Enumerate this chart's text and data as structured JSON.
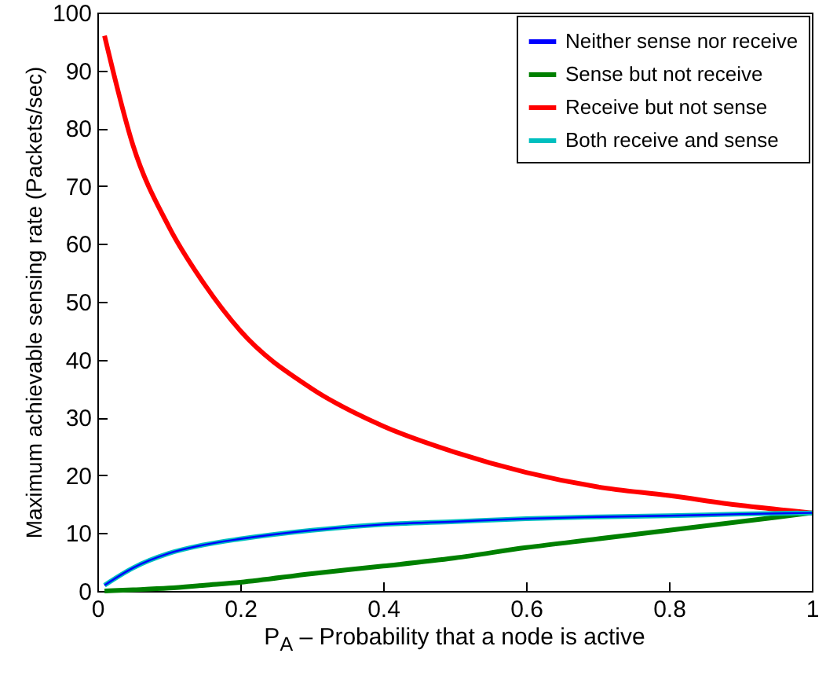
{
  "chart_data": {
    "type": "line",
    "xlabel": "P$_{A}$ – Probability that a node is active",
    "ylabel": "Maximum achievable sensing rate (Packets/sec)",
    "x": [
      0.01,
      0.05,
      0.1,
      0.15,
      0.2,
      0.3,
      0.4,
      0.5,
      0.6,
      0.7,
      0.8,
      0.9,
      1
    ],
    "series": [
      {
        "name": "Neither sense nor receive",
        "color": "#0000ff",
        "values": [
          1,
          4,
          6.5,
          8,
          9,
          10.5,
          11.5,
          12,
          12.5,
          12.8,
          13,
          13.3,
          13.5
        ]
      },
      {
        "name": "Sense but not receive",
        "color": "#008000",
        "values": [
          0,
          0.2,
          0.5,
          1,
          1.5,
          3,
          4.3,
          5.7,
          7.5,
          9,
          10.5,
          12,
          13.5
        ]
      },
      {
        "name": "Receive but not sense",
        "color": "#ff0000",
        "values": [
          96,
          77,
          63,
          53,
          45,
          35,
          28.5,
          24,
          20.5,
          18,
          16.5,
          14.8,
          13.5
        ]
      },
      {
        "name": "Both receive and sense",
        "color": "#00bfbf",
        "values": [
          1,
          4,
          6.5,
          8,
          9,
          10.5,
          11.5,
          12,
          12.5,
          12.8,
          13,
          13.3,
          13.5
        ]
      }
    ],
    "xlim": [
      0,
      1
    ],
    "xticks": [
      0,
      0.2,
      0.4,
      0.6,
      0.8,
      1
    ],
    "ylim": [
      0,
      100
    ],
    "yticks": [
      0,
      10,
      20,
      30,
      40,
      50,
      60,
      70,
      80,
      90,
      100
    ],
    "grid": false,
    "legend": "top right",
    "marker": "none",
    "line_style": "solid"
  }
}
